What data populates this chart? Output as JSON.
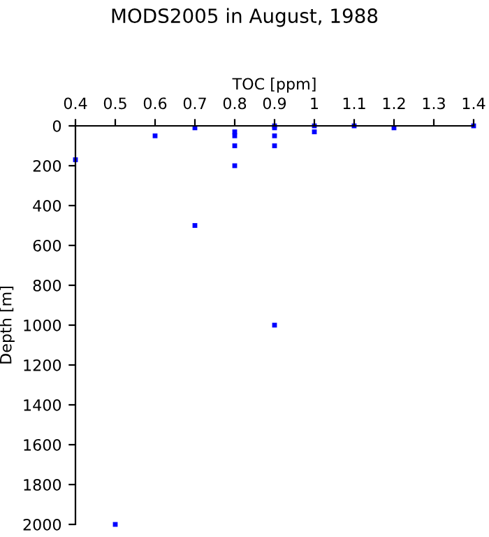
{
  "chart_data": {
    "type": "scatter",
    "title": "MODS2005 in August, 1988",
    "xlabel": "TOC [ppm]",
    "ylabel": "Depth [m]",
    "x": [
      0.4,
      0.5,
      0.6,
      0.7,
      0.7,
      0.8,
      0.8,
      0.8,
      0.8,
      0.9,
      0.9,
      0.9,
      0.9,
      0.9,
      1.0,
      1.0,
      1.1,
      1.2,
      1.4
    ],
    "series": [
      {
        "color": "#0000ff",
        "values": [
          170,
          2000,
          50,
          10,
          500,
          30,
          50,
          100,
          200,
          0,
          10,
          50,
          100,
          1000,
          0,
          30,
          0,
          10,
          0
        ]
      }
    ],
    "xlim": [
      0.4,
      1.4
    ],
    "xticks": [
      0.4,
      0.5,
      0.6,
      0.7,
      0.8,
      0.9,
      1,
      1.1,
      1.2,
      1.3,
      1.4
    ],
    "ylim": [
      2000,
      0
    ],
    "yticks": [
      0,
      200,
      400,
      600,
      800,
      1000,
      1200,
      1400,
      1600,
      1800,
      2000
    ],
    "marker": "square",
    "grid": false,
    "legend": false
  }
}
